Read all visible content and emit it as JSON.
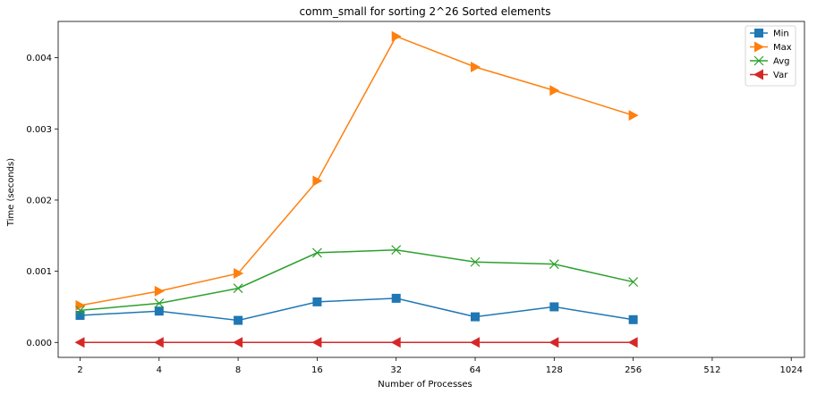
{
  "chart_data": {
    "type": "line",
    "title": "comm_small for sorting 2^26 Sorted elements",
    "xlabel": "Number of Processes",
    "ylabel": "Time (seconds)",
    "x_scale": "log2",
    "x_ticks": [
      2,
      4,
      8,
      16,
      32,
      64,
      128,
      256,
      512,
      1024
    ],
    "x_tick_labels": [
      "2",
      "4",
      "8",
      "16",
      "32",
      "64",
      "128",
      "256",
      "512",
      "1024"
    ],
    "xlim": [
      1.65,
      1150
    ],
    "y_ticks": [
      0.0,
      0.001,
      0.002,
      0.003,
      0.004
    ],
    "y_tick_labels": [
      "0.000",
      "0.001",
      "0.002",
      "0.003",
      "0.004"
    ],
    "ylim": [
      -0.00021,
      0.00451
    ],
    "legend_position": "top-right",
    "grid": false,
    "x": [
      2,
      4,
      8,
      16,
      32,
      64,
      128,
      256
    ],
    "series": [
      {
        "name": "Min",
        "color": "#1f77b4",
        "marker": "square",
        "values": [
          0.00038,
          0.00044,
          0.00031,
          0.00057,
          0.00062,
          0.00036,
          0.0005,
          0.00032
        ]
      },
      {
        "name": "Max",
        "color": "#ff7f0e",
        "marker": "triangle-right",
        "values": [
          0.00052,
          0.00072,
          0.00097,
          0.00227,
          0.0043,
          0.00387,
          0.00354,
          0.00319
        ]
      },
      {
        "name": "Avg",
        "color": "#2ca02c",
        "marker": "x",
        "values": [
          0.00045,
          0.00055,
          0.00076,
          0.00126,
          0.0013,
          0.00113,
          0.0011,
          0.00085
        ]
      },
      {
        "name": "Var",
        "color": "#d62728",
        "marker": "triangle-left",
        "values": [
          0.0,
          0.0,
          0.0,
          0.0,
          0.0,
          0.0,
          0.0,
          0.0
        ]
      }
    ]
  }
}
